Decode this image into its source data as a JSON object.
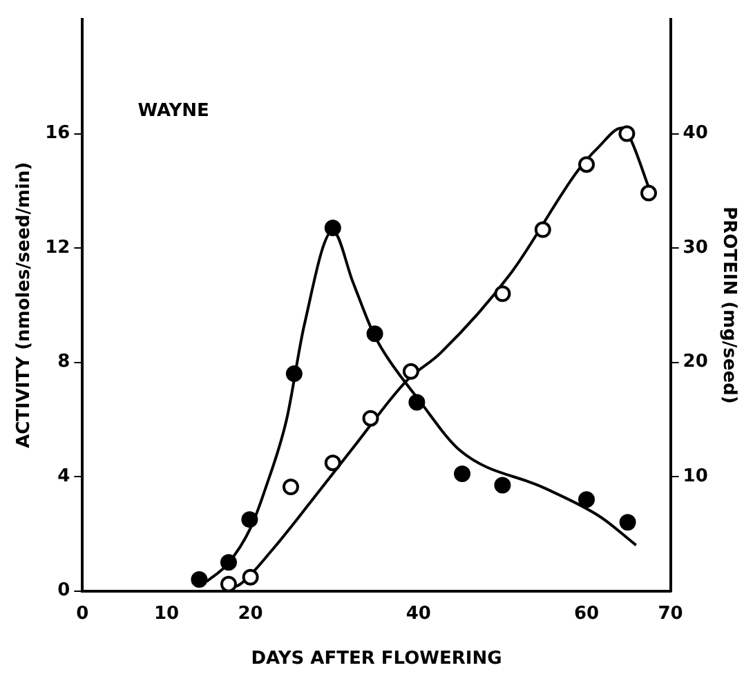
{
  "chart_data": {
    "type": "scatter",
    "xlabel": "DAYS AFTER FLOWERING",
    "ylabel": "ACTIVITY (nmoles/seed/min)",
    "y2label": "PROTEIN (mg/seed)",
    "annotations": [
      "WAYNE"
    ],
    "xlim": [
      0,
      70
    ],
    "xticks": [
      0,
      10,
      20,
      40,
      60,
      70
    ],
    "ylim": [
      0,
      20
    ],
    "yticks": [
      0,
      4,
      8,
      12,
      16
    ],
    "y2lim": [
      0,
      50
    ],
    "y2ticks": [
      10,
      20,
      30,
      40
    ],
    "grid": false,
    "legend": false,
    "marker": "circle",
    "series": [
      {
        "axis": "y",
        "color": "#000000",
        "x": [
          13.9,
          17.4,
          19.9,
          25.2,
          29.8,
          34.8,
          39.8,
          45.2,
          50,
          60,
          64.9
        ],
        "values": [
          0.4,
          1.0,
          2.5,
          7.6,
          12.7,
          9.0,
          6.6,
          4.1,
          3.7,
          3.2,
          2.4
        ]
      },
      {
        "axis": "y2",
        "color": "#000000",
        "x": [
          17.4,
          20,
          24.8,
          29.8,
          34.3,
          39.1,
          50,
          54.8,
          60,
          64.8,
          67.4
        ],
        "values": [
          0.6,
          1.2,
          9.1,
          11.2,
          15.1,
          19.2,
          26,
          31.6,
          37.3,
          40,
          34.8
        ]
      },
      {
        "type": "line",
        "axis": "y",
        "color": "#000000",
        "marker": "none",
        "line_style": "solid",
        "x": [
          14.8,
          17.3,
          20,
          21.8,
          24.3,
          26.4,
          29.8,
          32.2,
          34.5,
          36,
          40,
          45,
          55,
          61.6,
          65.9
        ],
        "values": [
          0.33,
          0.95,
          2.2,
          3.6,
          6.0,
          9.3,
          12.6,
          10.8,
          9.1,
          8.3,
          6.7,
          4.9,
          3.6,
          2.6,
          1.6
        ]
      },
      {
        "type": "line",
        "axis": "y2",
        "color": "#000000",
        "marker": "none",
        "line_style": "solid",
        "x": [
          17.4,
          18.8,
          22.6,
          27.5,
          32.3,
          38.6,
          42.6,
          51,
          59,
          61.4,
          64.2,
          65,
          67.6
        ],
        "values": [
          0.2,
          0.6,
          3.6,
          8.1,
          12.6,
          18.4,
          20.8,
          27.8,
          36.8,
          38.8,
          40.5,
          39.9,
          34.9
        ]
      }
    ]
  }
}
